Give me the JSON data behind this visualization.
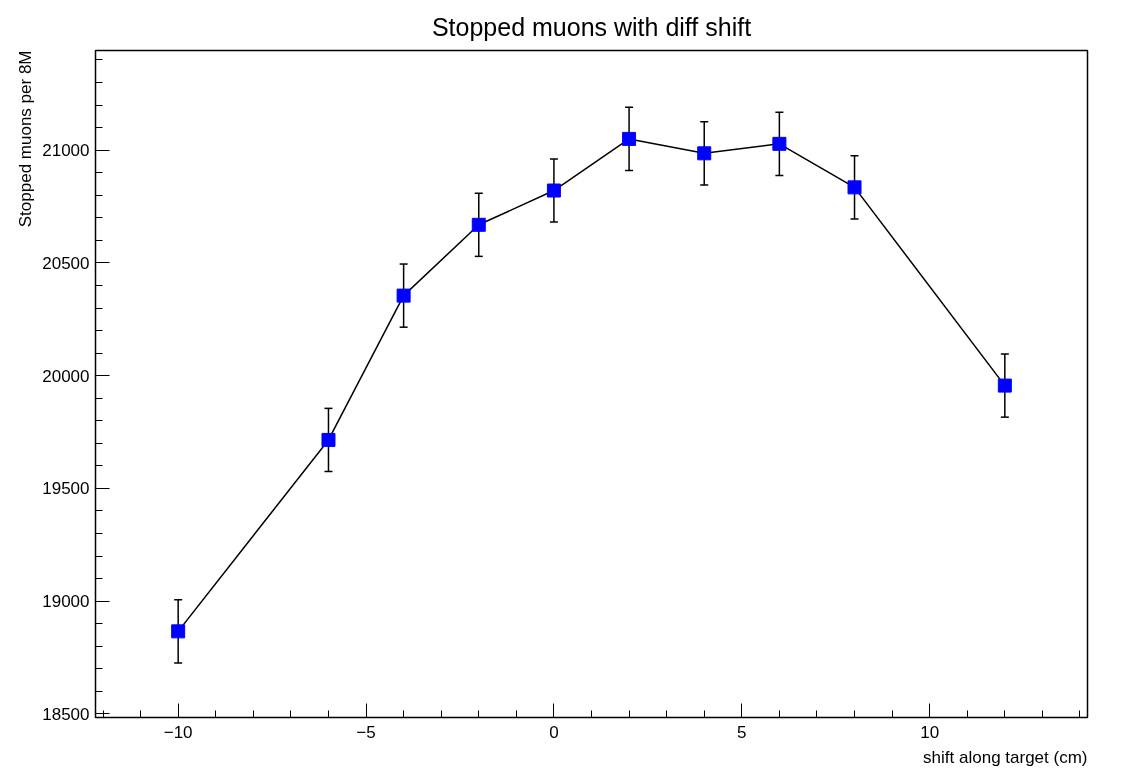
{
  "chart_data": {
    "type": "line",
    "title": "Stopped muons with diff shift",
    "xlabel": "shift along target (cm)",
    "ylabel": "Stopped muons per 8M",
    "x": [
      -10,
      -6,
      -4,
      -2,
      0,
      2,
      4,
      6,
      8,
      12
    ],
    "series": [
      {
        "color": "#0000ff",
        "values": [
          18866,
          19715,
          20355,
          20669,
          20821,
          21050,
          20986,
          21028,
          20835,
          19956
        ],
        "errors": [
          140,
          140,
          140,
          140,
          140,
          140,
          140,
          140,
          140,
          140
        ]
      }
    ],
    "xlim": [
      -12.2,
      14.2
    ],
    "ylim": [
      18484,
      21442
    ],
    "xticks": [
      {
        "value": -10,
        "label": "−10"
      },
      {
        "value": -5,
        "label": "−5"
      },
      0,
      5,
      10
    ],
    "yticks": [
      18500,
      19000,
      19500,
      20000,
      20500,
      21000
    ],
    "marker": "square",
    "line_style": "solid",
    "grid": false
  }
}
